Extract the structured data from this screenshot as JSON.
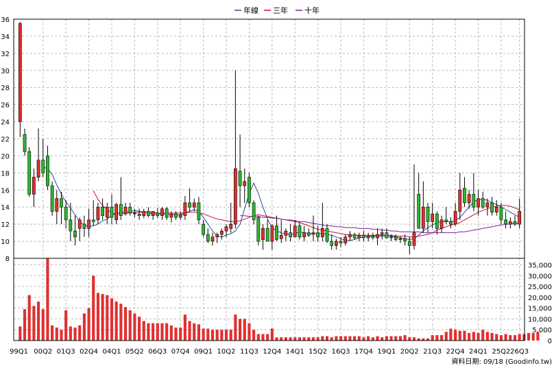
{
  "chart_data": {
    "type": "candlestick",
    "legend": {
      "placement": "top-center",
      "items": [
        {
          "label": "年線",
          "color": "#1f4e9a"
        },
        {
          "label": "三年",
          "color": "#c8102e"
        },
        {
          "label": "十年",
          "color": "#7a1fa2"
        }
      ]
    },
    "price_axis": {
      "side": "left",
      "ylim": [
        8,
        36
      ],
      "ticks": [
        8,
        10,
        12,
        14,
        16,
        18,
        20,
        22,
        24,
        26,
        28,
        30,
        32,
        34,
        36
      ]
    },
    "volume_axis": {
      "side": "right",
      "ylim": [
        0,
        38000
      ],
      "ticks": [
        0,
        5000,
        10000,
        15000,
        20000,
        25000,
        30000,
        35000
      ],
      "tick_labels": [
        "0",
        "5,000",
        "10,000",
        "15,000",
        "20,000",
        "25,000",
        "30,000",
        "35,000"
      ]
    },
    "x_tick_labels": [
      "99Q1",
      "00Q2",
      "01Q3",
      "02Q4",
      "04Q1",
      "05Q2",
      "06Q3",
      "07Q4",
      "09Q1",
      "10Q2",
      "11Q3",
      "12Q4",
      "14Q1",
      "15Q2",
      "16Q3",
      "17Q4",
      "19Q1",
      "20Q2",
      "21Q3",
      "22Q4",
      "24Q1",
      "25Q2",
      "26Q3"
    ],
    "grid": true,
    "footer": "資料日期: 09/18  (Goodinfo.tw)",
    "up_color": "#e03030",
    "down_color": "#2db82d",
    "candles": [
      [
        24.0,
        35.7,
        22.2,
        35.5
      ],
      [
        22.5,
        23.2,
        20.0,
        20.5
      ],
      [
        20.5,
        21.0,
        15.2,
        15.5
      ],
      [
        15.5,
        18.5,
        14.0,
        17.5
      ],
      [
        17.5,
        23.2,
        17.0,
        19.5
      ],
      [
        19.5,
        22.0,
        17.5,
        18.0
      ],
      [
        20.0,
        21.2,
        16.0,
        16.5
      ],
      [
        16.5,
        17.0,
        13.0,
        13.5
      ],
      [
        13.5,
        16.0,
        12.0,
        15.0
      ],
      [
        15.0,
        15.8,
        12.0,
        14.0
      ],
      [
        14.0,
        14.8,
        11.5,
        12.5
      ],
      [
        12.5,
        14.5,
        10.0,
        11.2
      ],
      [
        11.2,
        13.0,
        9.5,
        10.5
      ],
      [
        11.5,
        12.8,
        10.0,
        12.5
      ],
      [
        12.0,
        13.0,
        10.5,
        11.5
      ],
      [
        11.5,
        13.8,
        10.5,
        12.5
      ],
      [
        12.5,
        14.8,
        11.8,
        12.3
      ],
      [
        12.5,
        14.5,
        12.0,
        14.0
      ],
      [
        14.0,
        15.0,
        12.5,
        13.0
      ],
      [
        12.8,
        14.5,
        12.0,
        14.0
      ],
      [
        14.0,
        15.5,
        12.0,
        12.8
      ],
      [
        12.5,
        14.5,
        12.0,
        14.3
      ],
      [
        14.3,
        17.5,
        12.5,
        13.0
      ],
      [
        13.2,
        14.5,
        13.0,
        14.0
      ],
      [
        14.0,
        14.5,
        13.0,
        13.3
      ],
      [
        13.3,
        13.8,
        12.8,
        13.3
      ],
      [
        13.2,
        13.8,
        12.5,
        13.0
      ],
      [
        13.0,
        13.8,
        12.7,
        13.5
      ],
      [
        13.5,
        14.0,
        12.8,
        13.0
      ],
      [
        13.0,
        13.5,
        12.5,
        13.5
      ],
      [
        13.3,
        13.9,
        12.7,
        13.0
      ],
      [
        13.0,
        14.0,
        12.5,
        13.8
      ],
      [
        13.8,
        14.0,
        12.5,
        12.8
      ],
      [
        12.8,
        13.5,
        12.2,
        13.2
      ],
      [
        13.2,
        13.5,
        12.5,
        12.8
      ],
      [
        12.8,
        13.5,
        12.5,
        13.1
      ],
      [
        13.0,
        15.3,
        12.5,
        14.5
      ],
      [
        14.5,
        16.2,
        13.5,
        14.0
      ],
      [
        14.0,
        15.0,
        13.5,
        14.5
      ],
      [
        14.5,
        15.2,
        12.0,
        12.5
      ],
      [
        12.0,
        12.5,
        10.5,
        10.8
      ],
      [
        10.8,
        11.5,
        9.8,
        10.0
      ],
      [
        10.0,
        11.0,
        9.5,
        10.5
      ],
      [
        10.5,
        11.0,
        9.8,
        10.8
      ],
      [
        10.8,
        11.5,
        10.2,
        11.2
      ],
      [
        11.2,
        12.0,
        10.5,
        11.7
      ],
      [
        11.5,
        14.5,
        11.0,
        12.0
      ],
      [
        12.0,
        30.0,
        11.5,
        18.5
      ],
      [
        18.2,
        22.5,
        14.0,
        16.5
      ],
      [
        16.5,
        18.5,
        14.5,
        17.0
      ],
      [
        17.5,
        18.0,
        14.0,
        14.5
      ],
      [
        14.5,
        14.8,
        12.0,
        12.5
      ],
      [
        12.8,
        13.0,
        9.5,
        10.0
      ],
      [
        10.2,
        12.0,
        9.0,
        11.5
      ],
      [
        11.5,
        12.5,
        10.0,
        10.0
      ],
      [
        10.0,
        12.0,
        9.0,
        11.8
      ],
      [
        11.8,
        13.0,
        10.0,
        10.2
      ],
      [
        10.3,
        12.5,
        9.8,
        10.7
      ],
      [
        10.7,
        11.5,
        10.0,
        11.2
      ],
      [
        11.0,
        12.0,
        10.0,
        10.5
      ],
      [
        10.5,
        12.5,
        10.5,
        11.8
      ],
      [
        11.8,
        12.2,
        10.2,
        10.5
      ],
      [
        10.5,
        11.8,
        10.0,
        11.0
      ],
      [
        11.0,
        11.5,
        10.5,
        10.7
      ],
      [
        10.8,
        13.0,
        10.0,
        11.0
      ],
      [
        11.0,
        11.8,
        10.0,
        10.5
      ],
      [
        10.5,
        14.5,
        10.0,
        11.5
      ],
      [
        11.5,
        12.0,
        9.8,
        10.0
      ],
      [
        10.0,
        10.8,
        9.0,
        9.5
      ],
      [
        9.5,
        10.3,
        9.0,
        10.0
      ],
      [
        10.0,
        10.5,
        9.3,
        9.8
      ],
      [
        9.8,
        10.8,
        9.5,
        10.5
      ],
      [
        10.5,
        11.2,
        10.0,
        10.8
      ],
      [
        10.8,
        11.0,
        10.2,
        10.4
      ],
      [
        10.4,
        11.0,
        10.0,
        10.7
      ],
      [
        10.7,
        11.2,
        10.0,
        10.4
      ],
      [
        10.4,
        11.0,
        10.0,
        10.6
      ],
      [
        10.6,
        11.0,
        10.2,
        10.4
      ],
      [
        10.4,
        11.5,
        9.5,
        10.8
      ],
      [
        10.8,
        11.5,
        10.2,
        11.0
      ],
      [
        11.0,
        11.5,
        10.3,
        10.4
      ],
      [
        10.4,
        10.8,
        10.0,
        10.5
      ],
      [
        10.5,
        10.8,
        10.0,
        10.2
      ],
      [
        10.2,
        10.6,
        9.8,
        10.3
      ],
      [
        10.3,
        10.8,
        9.5,
        10.0
      ],
      [
        10.0,
        10.5,
        8.5,
        9.5
      ],
      [
        9.5,
        19.0,
        9.0,
        11.0
      ],
      [
        15.5,
        18.0,
        11.5,
        11.5
      ],
      [
        11.5,
        17.0,
        11.0,
        14.0
      ],
      [
        14.0,
        14.5,
        11.0,
        12.3
      ],
      [
        12.3,
        14.5,
        11.5,
        13.2
      ],
      [
        13.2,
        13.5,
        10.8,
        11.5
      ],
      [
        11.5,
        13.0,
        11.0,
        12.5
      ],
      [
        12.5,
        14.0,
        12.0,
        12.3
      ],
      [
        12.3,
        12.8,
        11.5,
        12.0
      ],
      [
        12.0,
        14.5,
        11.8,
        13.5
      ],
      [
        13.5,
        18.0,
        12.5,
        16.0
      ],
      [
        16.2,
        17.5,
        14.0,
        14.5
      ],
      [
        14.5,
        16.0,
        13.8,
        15.5
      ],
      [
        15.5,
        18.0,
        13.5,
        14.0
      ],
      [
        14.0,
        16.0,
        13.0,
        15.0
      ],
      [
        15.0,
        15.8,
        13.8,
        14.0
      ],
      [
        14.0,
        15.0,
        13.0,
        14.5
      ],
      [
        14.5,
        15.2,
        13.0,
        13.4
      ],
      [
        13.4,
        14.8,
        13.0,
        14.0
      ],
      [
        14.0,
        14.5,
        12.0,
        12.5
      ],
      [
        12.5,
        13.5,
        11.5,
        12.0
      ],
      [
        12.0,
        12.8,
        11.5,
        12.3
      ],
      [
        12.3,
        13.0,
        11.8,
        12.0
      ],
      [
        12.0,
        15.0,
        11.5,
        13.5
      ]
    ],
    "volume": [
      6500,
      14500,
      21000,
      16000,
      18000,
      14500,
      38000,
      7000,
      6000,
      5000,
      14000,
      6500,
      6000,
      7000,
      12500,
      15000,
      30000,
      22000,
      21500,
      21000,
      19500,
      18000,
      17000,
      15500,
      14000,
      12500,
      11000,
      9000,
      8000,
      8000,
      8000,
      8000,
      8000,
      7000,
      6000,
      6000,
      12000,
      9000,
      8000,
      7500,
      5500,
      5500,
      5000,
      5000,
      5000,
      5000,
      5000,
      12000,
      10000,
      10000,
      8000,
      5000,
      3000,
      3000,
      3000,
      5500,
      1500,
      1500,
      1500,
      1500,
      1500,
      1500,
      1500,
      1500,
      1500,
      1500,
      2000,
      2000,
      1500,
      2000,
      2000,
      2000,
      2000,
      2000,
      2000,
      1500,
      2000,
      1500,
      2000,
      1500,
      2000,
      2000,
      2000,
      2000,
      2500,
      1500,
      1500,
      1000,
      1000,
      1000,
      2500,
      2500,
      2500,
      4000,
      5500,
      5000,
      4500,
      4500,
      3500,
      4000,
      3500,
      5000,
      4000,
      3500,
      3000,
      2500,
      3000,
      2500,
      2500,
      3000,
      3000,
      3500,
      3500,
      4000
    ],
    "ma_year": [
      null,
      null,
      null,
      null,
      null,
      18.7,
      18.5,
      17.8,
      16.6,
      15.5,
      14.6,
      13.9,
      13.1,
      12.3,
      11.9,
      11.7,
      11.8,
      12.0,
      12.4,
      12.6,
      13.0,
      13.3,
      13.4,
      13.4,
      13.5,
      13.6,
      13.5,
      13.4,
      13.3,
      13.2,
      13.2,
      13.2,
      13.2,
      13.1,
      13.1,
      13.1,
      13.3,
      13.5,
      13.7,
      13.5,
      12.8,
      12.0,
      11.2,
      10.6,
      10.5,
      10.7,
      10.9,
      11.2,
      12.0,
      13.8,
      15.6,
      16.8,
      15.6,
      14.0,
      12.6,
      11.6,
      11.2,
      11.0,
      10.8,
      10.8,
      10.9,
      11.1,
      11.0,
      10.9,
      10.9,
      10.9,
      10.9,
      10.8,
      10.7,
      10.5,
      10.3,
      10.1,
      10.1,
      10.2,
      10.4,
      10.5,
      10.6,
      10.6,
      10.6,
      10.6,
      10.6,
      10.6,
      10.5,
      10.4,
      10.3,
      10.2,
      10.3,
      10.7,
      11.2,
      11.6,
      11.9,
      12.2,
      12.3,
      12.3,
      12.3,
      12.4,
      12.8,
      13.4,
      14.0,
      14.6,
      14.9,
      14.9,
      14.8,
      14.5,
      14.3,
      14.0,
      13.7,
      13.4,
      13.1,
      12.8
    ],
    "ma_3year": [
      null,
      null,
      null,
      null,
      null,
      null,
      null,
      null,
      null,
      null,
      null,
      null,
      null,
      null,
      null,
      null,
      15.9,
      14.9,
      14.2,
      13.7,
      13.3,
      13.2,
      13.2,
      13.3,
      13.3,
      13.4,
      13.4,
      13.4,
      13.4,
      13.4,
      13.3,
      13.3,
      13.3,
      13.3,
      13.3,
      13.3,
      13.3,
      13.4,
      13.4,
      13.3,
      13.2,
      13.0,
      12.8,
      12.6,
      12.5,
      12.4,
      12.3,
      12.3,
      12.4,
      12.6,
      12.8,
      13.0,
      13.1,
      13.0,
      12.9,
      12.8,
      12.7,
      12.6,
      12.5,
      12.4,
      12.3,
      12.2,
      12.0,
      11.8,
      11.6,
      11.4,
      11.3,
      11.2,
      11.1,
      11.0,
      10.9,
      10.8,
      10.7,
      10.7,
      10.7,
      10.7,
      10.7,
      10.7,
      10.7,
      10.7,
      10.7,
      10.7,
      10.6,
      10.6,
      10.6,
      10.5,
      10.5,
      10.6,
      10.7,
      10.8,
      11.0,
      11.3,
      11.5,
      11.7,
      11.9,
      12.0,
      12.2,
      12.5,
      12.8,
      13.1,
      13.4,
      13.6,
      13.8,
      14.0,
      14.1,
      14.2,
      14.2,
      14.1,
      13.9,
      13.7
    ],
    "ma_10year": [
      null,
      null,
      null,
      null,
      null,
      null,
      null,
      null,
      null,
      null,
      null,
      null,
      null,
      null,
      null,
      null,
      null,
      null,
      null,
      null,
      null,
      null,
      null,
      null,
      null,
      null,
      null,
      null,
      null,
      null,
      null,
      null,
      null,
      null,
      null,
      null,
      null,
      null,
      null,
      null,
      null,
      null,
      null,
      null,
      null,
      null,
      null,
      null,
      13.0,
      13.0,
      12.9,
      12.9,
      12.9,
      12.8,
      12.8,
      12.7,
      12.7,
      12.6,
      12.5,
      12.5,
      12.4,
      12.3,
      12.3,
      12.2,
      12.1,
      12.0,
      11.9,
      11.8,
      11.8,
      11.7,
      11.7,
      11.6,
      11.6,
      11.6,
      11.5,
      11.5,
      11.5,
      11.4,
      11.4,
      11.3,
      11.3,
      11.2,
      11.2,
      11.1,
      11.1,
      11.1,
      11.1,
      11.1,
      11.0,
      11.0,
      11.0,
      11.0,
      11.0,
      11.0,
      11.0,
      11.0,
      11.1,
      11.1,
      11.2,
      11.3,
      11.4,
      11.5,
      11.6,
      11.7,
      11.8,
      11.9,
      12.0,
      12.0,
      12.1,
      12.1
    ]
  }
}
